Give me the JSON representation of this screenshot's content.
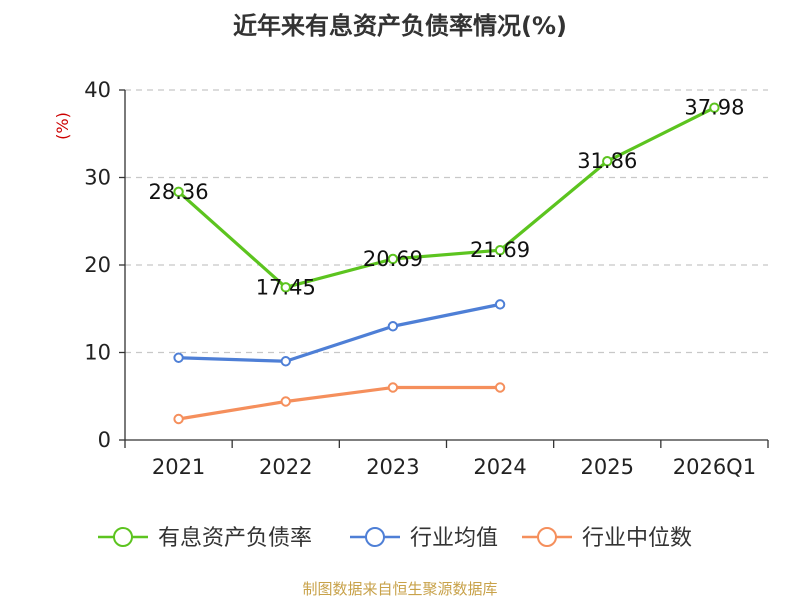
{
  "title": "近年来有息资产负债率情况(%)",
  "source": "制图数据来自恒生聚源数据库",
  "chart_data": {
    "type": "line",
    "title": "近年来有息资产负债率情况(%)",
    "ylabel": "(%)",
    "xlabel": "",
    "categories": [
      "2021",
      "2022",
      "2023",
      "2024",
      "2025",
      "2026Q1"
    ],
    "ylim": [
      0,
      40
    ],
    "yticks": [
      0,
      10,
      20,
      30,
      40
    ],
    "grid": true,
    "legend_position": "bottom",
    "series": [
      {
        "name": "有息资产负债率",
        "color": "#5cc41f",
        "values": [
          28.36,
          17.45,
          20.69,
          21.69,
          31.86,
          37.98
        ],
        "labels": [
          "28.36",
          "17.45",
          "20.69",
          "21.69",
          "31.86",
          "37.98"
        ]
      },
      {
        "name": "行业均值",
        "color": "#4e7fd6",
        "values": [
          9.4,
          9.0,
          13.0,
          15.5,
          null,
          null
        ]
      },
      {
        "name": "行业中位数",
        "color": "#f58f5c",
        "values": [
          2.4,
          4.4,
          6.0,
          6.0,
          null,
          null
        ]
      }
    ]
  }
}
